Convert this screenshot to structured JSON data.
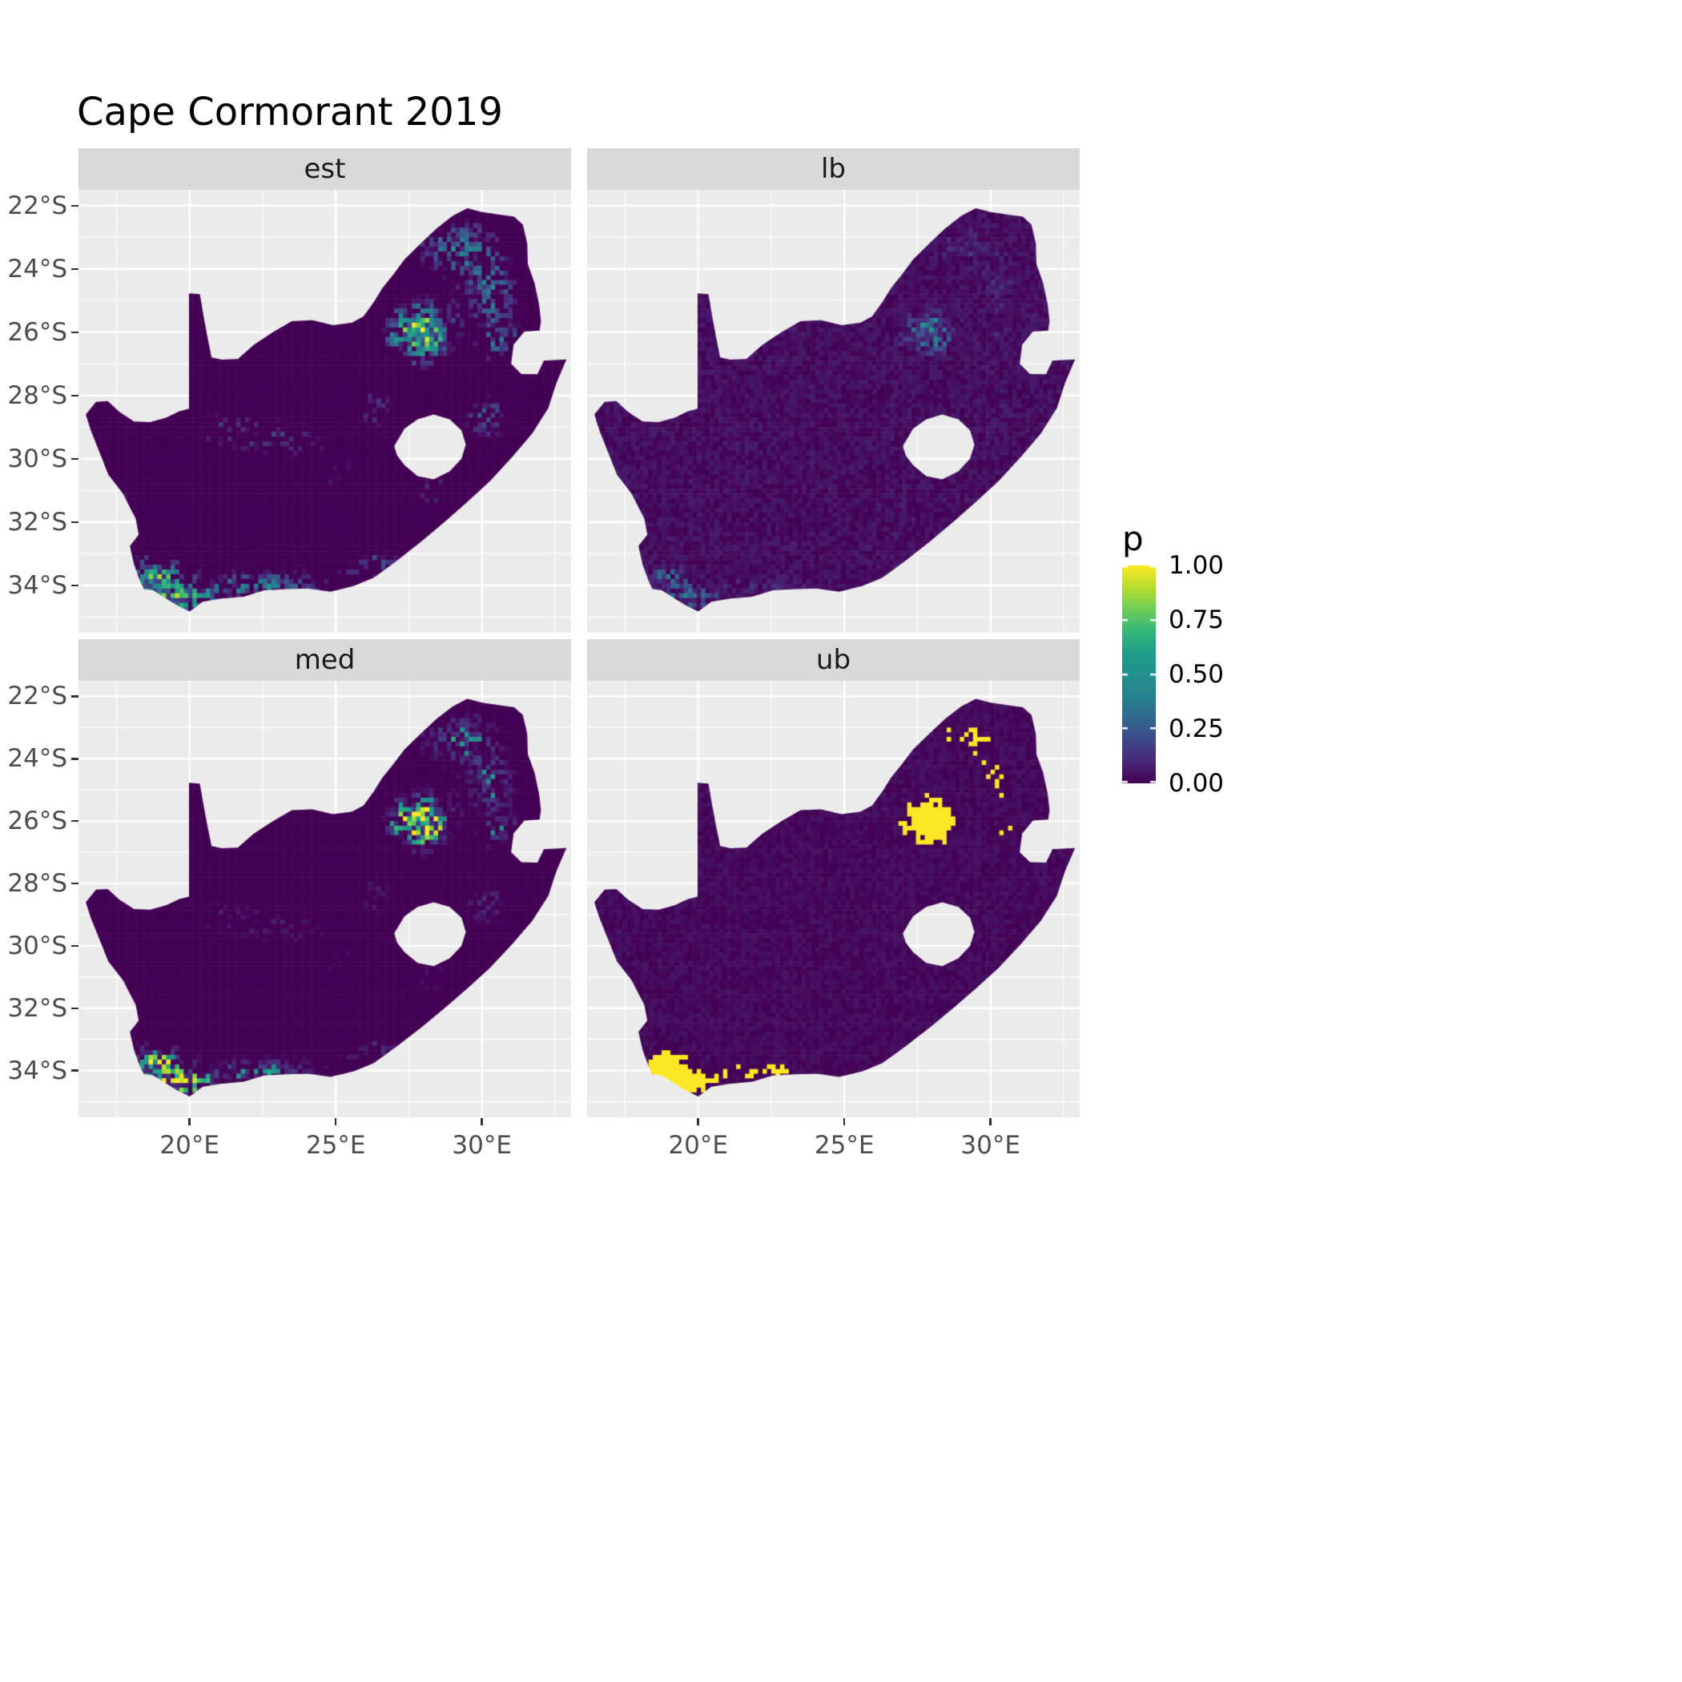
{
  "title": "Cape Cormorant 2019",
  "facets": [
    {
      "id": "est",
      "label": "est"
    },
    {
      "id": "lb",
      "label": "lb"
    },
    {
      "id": "med",
      "label": "med"
    },
    {
      "id": "ub",
      "label": "ub"
    }
  ],
  "axes": {
    "y_ticks": [
      "22°S",
      "24°S",
      "26°S",
      "28°S",
      "30°S",
      "32°S",
      "34°S"
    ],
    "y_values": [
      22,
      24,
      26,
      28,
      30,
      32,
      34
    ],
    "x_ticks": [
      "20°E",
      "25°E",
      "30°E"
    ],
    "x_values": [
      20,
      25,
      30
    ]
  },
  "legend": {
    "title": "p",
    "labels": [
      "1.00",
      "0.75",
      "0.50",
      "0.25",
      "0.00"
    ],
    "values": [
      1,
      0.75,
      0.5,
      0.25,
      0
    ]
  },
  "colors": {
    "panel_bg": "#ebebeb",
    "strip_bg": "#d9d9d9",
    "grid": "#ffffff",
    "axis_text": "#4d4d4d",
    "viridis_low": "#440154",
    "viridis_mid": "#21918c",
    "viridis_high": "#fde725"
  },
  "chart_data": {
    "type": "heatmap",
    "title": "Cape Cormorant 2019",
    "facet_layout": "2x2",
    "facet_variable_values": [
      "est",
      "lb",
      "med",
      "ub"
    ],
    "legend_variable": "p",
    "value_range": [
      0,
      1
    ],
    "x_range_lon_E": [
      16.2,
      33.05
    ],
    "y_range_lat_S": [
      21.5,
      35.5
    ],
    "cell_size_deg": 0.15,
    "minor_x_lon": [
      17.5,
      22.5,
      27.5,
      32.5
    ],
    "minor_y_lat": [
      23,
      25,
      27,
      29,
      31,
      33,
      35
    ],
    "map_outline": [
      [
        16.45,
        28.6
      ],
      [
        16.8,
        28.2
      ],
      [
        17.2,
        28.18
      ],
      [
        17.6,
        28.52
      ],
      [
        18.1,
        28.82
      ],
      [
        18.65,
        28.84
      ],
      [
        19.2,
        28.7
      ],
      [
        19.65,
        28.5
      ],
      [
        19.98,
        28.42
      ],
      [
        19.98,
        24.77
      ],
      [
        20.35,
        24.8
      ],
      [
        20.48,
        25.5
      ],
      [
        20.6,
        26.1
      ],
      [
        20.75,
        26.8
      ],
      [
        21.1,
        26.87
      ],
      [
        21.65,
        26.85
      ],
      [
        22.2,
        26.4
      ],
      [
        22.85,
        26.0
      ],
      [
        23.5,
        25.65
      ],
      [
        24.2,
        25.62
      ],
      [
        24.9,
        25.78
      ],
      [
        25.55,
        25.7
      ],
      [
        25.95,
        25.5
      ],
      [
        26.3,
        25.05
      ],
      [
        26.6,
        24.6
      ],
      [
        26.95,
        24.2
      ],
      [
        27.35,
        23.7
      ],
      [
        27.9,
        23.2
      ],
      [
        28.45,
        22.72
      ],
      [
        29.0,
        22.32
      ],
      [
        29.5,
        22.08
      ],
      [
        30.0,
        22.2
      ],
      [
        30.55,
        22.28
      ],
      [
        31.1,
        22.35
      ],
      [
        31.4,
        22.6
      ],
      [
        31.55,
        23.2
      ],
      [
        31.57,
        23.85
      ],
      [
        31.8,
        24.45
      ],
      [
        31.95,
        25.1
      ],
      [
        32.02,
        25.65
      ],
      [
        31.97,
        25.95
      ],
      [
        31.45,
        25.98
      ],
      [
        31.08,
        26.4
      ],
      [
        31.0,
        27.0
      ],
      [
        31.35,
        27.32
      ],
      [
        31.9,
        27.33
      ],
      [
        32.12,
        26.9
      ],
      [
        32.89,
        26.86
      ],
      [
        32.55,
        27.6
      ],
      [
        32.27,
        28.4
      ],
      [
        31.72,
        29.2
      ],
      [
        31.03,
        29.95
      ],
      [
        30.28,
        30.7
      ],
      [
        29.52,
        31.35
      ],
      [
        28.72,
        32.0
      ],
      [
        27.92,
        32.62
      ],
      [
        27.05,
        33.25
      ],
      [
        26.3,
        33.76
      ],
      [
        25.62,
        34.02
      ],
      [
        24.82,
        34.2
      ],
      [
        24.05,
        34.1
      ],
      [
        23.3,
        34.12
      ],
      [
        22.55,
        34.16
      ],
      [
        21.85,
        34.36
      ],
      [
        21.1,
        34.42
      ],
      [
        20.45,
        34.52
      ],
      [
        20.0,
        34.83
      ],
      [
        19.55,
        34.62
      ],
      [
        19.1,
        34.36
      ],
      [
        18.76,
        34.16
      ],
      [
        18.44,
        34.12
      ],
      [
        18.33,
        33.92
      ],
      [
        18.1,
        33.35
      ],
      [
        17.96,
        32.76
      ],
      [
        18.26,
        32.4
      ],
      [
        18.16,
        31.9
      ],
      [
        17.72,
        31.1
      ],
      [
        17.22,
        30.5
      ],
      [
        16.92,
        29.8
      ],
      [
        16.62,
        29.1
      ]
    ],
    "lesotho_hole": [
      [
        27.0,
        29.6
      ],
      [
        27.35,
        29.05
      ],
      [
        27.8,
        28.75
      ],
      [
        28.35,
        28.6
      ],
      [
        28.9,
        28.75
      ],
      [
        29.3,
        29.1
      ],
      [
        29.45,
        29.55
      ],
      [
        29.3,
        30.0
      ],
      [
        28.9,
        30.4
      ],
      [
        28.35,
        30.65
      ],
      [
        27.8,
        30.55
      ],
      [
        27.35,
        30.2
      ],
      [
        27.1,
        29.9
      ]
    ],
    "intensity_hotspots": [
      [
        27.9,
        26.0,
        1.05,
        0.85,
        1.15
      ],
      [
        29.2,
        23.3,
        1.5,
        0.9,
        0.55
      ],
      [
        30.3,
        24.8,
        1.0,
        0.9,
        0.5
      ],
      [
        30.6,
        26.3,
        0.8,
        0.7,
        0.45
      ],
      [
        30.2,
        28.7,
        0.85,
        0.8,
        0.4
      ],
      [
        22.3,
        34.0,
        2.8,
        0.5,
        0.55
      ],
      [
        18.9,
        33.8,
        0.8,
        0.7,
        0.85
      ],
      [
        19.9,
        34.5,
        1.0,
        0.4,
        0.7
      ],
      [
        23.0,
        29.3,
        1.6,
        0.8,
        0.28
      ],
      [
        21.0,
        29.0,
        1.2,
        0.9,
        0.22
      ],
      [
        17.8,
        31.5,
        0.55,
        1.0,
        0.3
      ],
      [
        26.3,
        28.4,
        0.9,
        0.8,
        0.3
      ],
      [
        26.5,
        33.3,
        1.3,
        0.6,
        0.35
      ],
      [
        25.0,
        30.5,
        1.3,
        1.0,
        0.2
      ],
      [
        28.3,
        31.0,
        0.7,
        0.6,
        0.3
      ]
    ],
    "panel_styles": {
      "est": "estimate",
      "lb": "lower_bound",
      "med": "median",
      "ub": "upper_bound"
    }
  }
}
